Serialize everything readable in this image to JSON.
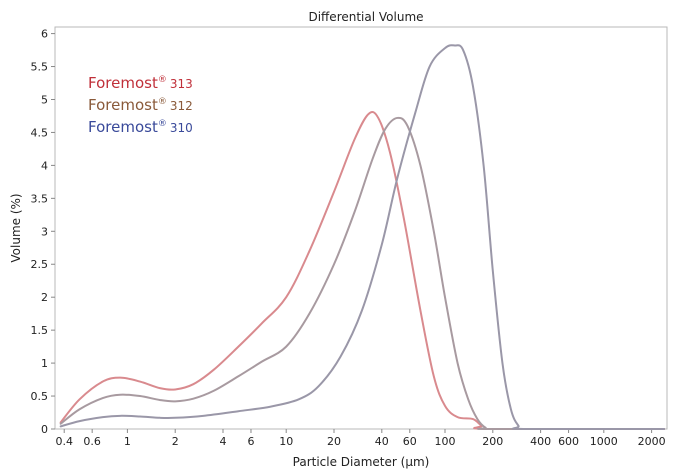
{
  "chart_data": {
    "type": "line",
    "title": "Differential Volume",
    "xlabel": "Particle Diameter (µm)",
    "ylabel": "Volume (%)",
    "x_scale": "log",
    "xlim": [
      0.35,
      2500
    ],
    "ylim": [
      0,
      6.1
    ],
    "x_ticks": [
      {
        "value": 0.4,
        "label": "0.4"
      },
      {
        "value": 0.6,
        "label": "0.6"
      },
      {
        "value": 1,
        "label": "1"
      },
      {
        "value": 2,
        "label": "2"
      },
      {
        "value": 4,
        "label": "4"
      },
      {
        "value": 6,
        "label": "6"
      },
      {
        "value": 10,
        "label": "10"
      },
      {
        "value": 20,
        "label": "20"
      },
      {
        "value": 40,
        "label": "40"
      },
      {
        "value": 60,
        "label": "60"
      },
      {
        "value": 100,
        "label": "100"
      },
      {
        "value": 200,
        "label": "200"
      },
      {
        "value": 400,
        "label": "400"
      },
      {
        "value": 600,
        "label": "600"
      },
      {
        "value": 1000,
        "label": "1000"
      },
      {
        "value": 2000,
        "label": "2000"
      }
    ],
    "y_ticks": [
      {
        "value": 0,
        "label": "0"
      },
      {
        "value": 0.5,
        "label": "0.5"
      },
      {
        "value": 1,
        "label": "1"
      },
      {
        "value": 1.5,
        "label": "1.5"
      },
      {
        "value": 2,
        "label": "2"
      },
      {
        "value": 2.5,
        "label": "2.5"
      },
      {
        "value": 3,
        "label": "3"
      },
      {
        "value": 3.5,
        "label": "3.5"
      },
      {
        "value": 4,
        "label": "4"
      },
      {
        "value": 4.5,
        "label": "4.5"
      },
      {
        "value": 5,
        "label": "5"
      },
      {
        "value": 5.5,
        "label": "5.5"
      },
      {
        "value": 6,
        "label": "6"
      }
    ],
    "grid": false,
    "legend_position": "top-left",
    "series": [
      {
        "name": "Foremost® 313",
        "brand": "Foremost",
        "mark": "®",
        "number": "313",
        "color": "#c0303a",
        "line_color": "#d98a8e",
        "points": [
          [
            0.38,
            0.1
          ],
          [
            0.5,
            0.45
          ],
          [
            0.7,
            0.72
          ],
          [
            0.9,
            0.78
          ],
          [
            1.2,
            0.72
          ],
          [
            1.6,
            0.62
          ],
          [
            2.0,
            0.6
          ],
          [
            2.6,
            0.68
          ],
          [
            3.5,
            0.9
          ],
          [
            5.0,
            1.25
          ],
          [
            7.0,
            1.6
          ],
          [
            10,
            2.0
          ],
          [
            14,
            2.7
          ],
          [
            20,
            3.6
          ],
          [
            27,
            4.4
          ],
          [
            33,
            4.78
          ],
          [
            38,
            4.72
          ],
          [
            45,
            4.2
          ],
          [
            55,
            3.2
          ],
          [
            70,
            1.8
          ],
          [
            85,
            0.8
          ],
          [
            100,
            0.35
          ],
          [
            120,
            0.18
          ],
          [
            150,
            0.15
          ],
          [
            170,
            0.05
          ],
          [
            190,
            0.0
          ],
          [
            2400,
            0.0
          ]
        ]
      },
      {
        "name": "Foremost® 312",
        "brand": "Foremost",
        "mark": "®",
        "number": "312",
        "color": "#8a5a3a",
        "line_color": "#a89aa0",
        "points": [
          [
            0.38,
            0.08
          ],
          [
            0.5,
            0.3
          ],
          [
            0.7,
            0.47
          ],
          [
            0.9,
            0.52
          ],
          [
            1.2,
            0.5
          ],
          [
            1.6,
            0.44
          ],
          [
            2.0,
            0.42
          ],
          [
            2.6,
            0.46
          ],
          [
            3.5,
            0.58
          ],
          [
            5.0,
            0.8
          ],
          [
            7.0,
            1.02
          ],
          [
            10,
            1.25
          ],
          [
            14,
            1.75
          ],
          [
            20,
            2.5
          ],
          [
            27,
            3.3
          ],
          [
            35,
            4.1
          ],
          [
            42,
            4.55
          ],
          [
            50,
            4.72
          ],
          [
            58,
            4.6
          ],
          [
            70,
            4.0
          ],
          [
            85,
            3.0
          ],
          [
            100,
            2.0
          ],
          [
            120,
            1.0
          ],
          [
            140,
            0.45
          ],
          [
            160,
            0.15
          ],
          [
            180,
            0.02
          ],
          [
            200,
            0.0
          ],
          [
            2400,
            0.0
          ]
        ]
      },
      {
        "name": "Foremost® 310",
        "brand": "Foremost",
        "mark": "®",
        "number": "310",
        "color": "#3a4a9a",
        "line_color": "#9a97a8",
        "points": [
          [
            0.38,
            0.04
          ],
          [
            0.5,
            0.12
          ],
          [
            0.7,
            0.18
          ],
          [
            0.9,
            0.2
          ],
          [
            1.2,
            0.19
          ],
          [
            1.6,
            0.17
          ],
          [
            2.0,
            0.17
          ],
          [
            3.0,
            0.2
          ],
          [
            5.0,
            0.27
          ],
          [
            8.0,
            0.34
          ],
          [
            12,
            0.45
          ],
          [
            16,
            0.65
          ],
          [
            22,
            1.1
          ],
          [
            30,
            1.8
          ],
          [
            40,
            2.8
          ],
          [
            50,
            3.8
          ],
          [
            65,
            4.8
          ],
          [
            80,
            5.5
          ],
          [
            100,
            5.78
          ],
          [
            115,
            5.82
          ],
          [
            130,
            5.75
          ],
          [
            150,
            5.2
          ],
          [
            175,
            4.0
          ],
          [
            200,
            2.4
          ],
          [
            230,
            1.0
          ],
          [
            260,
            0.3
          ],
          [
            290,
            0.05
          ],
          [
            320,
            0.0
          ],
          [
            2400,
            0.0
          ]
        ]
      }
    ]
  }
}
